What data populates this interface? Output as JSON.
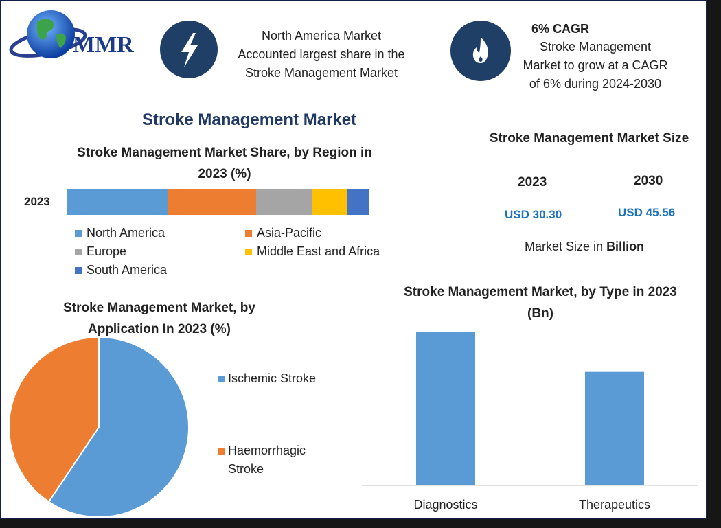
{
  "header": {
    "logo_text": "MMR",
    "callout_left": {
      "lines": [
        "North America Market",
        "Accounted largest share in the",
        "Stroke Management Market"
      ]
    },
    "callout_right": {
      "heading": "6% CAGR",
      "lines": [
        "Stroke Management",
        "Market to grow at a CAGR",
        "of 6% during 2024-2030"
      ]
    }
  },
  "main_title": "Stroke Management Market",
  "market_size": {
    "title": "Stroke Management Market Size",
    "years": [
      "2023",
      "2030"
    ],
    "values": [
      "USD 30.30",
      "USD 45.56"
    ],
    "note": "Market Size in",
    "note_bold": "Billion"
  },
  "chart_data": [
    {
      "type": "stacked-bar",
      "orientation": "horizontal",
      "title": "Stroke Management Market Share, by Region in 2023 (%)",
      "categories": [
        "2023"
      ],
      "series": [
        {
          "name": "North America",
          "color": "#5b9bd5",
          "values": [
            33.4
          ]
        },
        {
          "name": "Asia-Pacific",
          "color": "#ed7d31",
          "values": [
            29.1
          ]
        },
        {
          "name": "Europe",
          "color": "#a5a5a5",
          "values": [
            18.6
          ]
        },
        {
          "name": "Middle East and Africa",
          "color": "#ffc000",
          "values": [
            11.4
          ]
        },
        {
          "name": "South America",
          "color": "#4472c4",
          "values": [
            7.5
          ]
        }
      ]
    },
    {
      "type": "pie",
      "title": "Stroke Management Market, by Application In 2023 (%)",
      "categories": [
        "Ischemic Stroke",
        "Haemorrhagic Stroke"
      ],
      "values": [
        59.4,
        40.6
      ],
      "colors": [
        "#5b9bd5",
        "#ed7d31"
      ]
    },
    {
      "type": "bar",
      "title": "Stroke Management Market, by Type in 2023 (Bn)",
      "categories": [
        "Diagnostics",
        "Therapeutics"
      ],
      "values": [
        17.4,
        12.9
      ],
      "color": "#5b9bd5"
    }
  ]
}
